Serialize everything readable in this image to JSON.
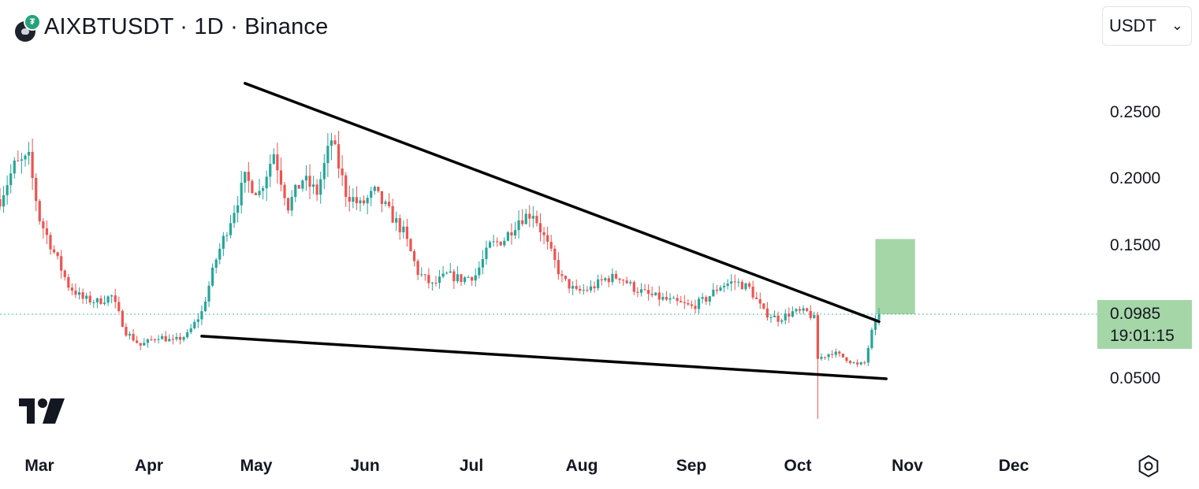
{
  "header": {
    "title": "AIXBTUSDT · 1D · Binance",
    "currency": "USDT"
  },
  "price_axis": {
    "labels": [
      "0.2500",
      "0.2000",
      "0.1500",
      "0.0500"
    ],
    "last_price": "0.0985",
    "countdown": "19:01:15"
  },
  "time_axis": {
    "labels": [
      "Mar",
      "Apr",
      "May",
      "Jun",
      "Jul",
      "Aug",
      "Sep",
      "Oct",
      "Nov",
      "Dec"
    ]
  },
  "colors": {
    "up": "#26a69a",
    "down": "#ef5350",
    "trendline": "#000000",
    "target_box": "#a5d6a7",
    "last_price_line": "#26a69a"
  },
  "icons": [
    "tradingview-logo-icon",
    "settings-icon",
    "chevron-down-icon",
    "coin-icon"
  ],
  "chart_data": {
    "type": "candlestick",
    "symbol": "AIXBTUSDT",
    "interval": "1D",
    "exchange": "Binance",
    "ylim": [
      0.012,
      0.285
    ],
    "y_ticks": [
      0.05,
      0.15,
      0.2,
      0.25
    ],
    "last_price": 0.0985,
    "close_path": [
      [
        "2025-02-25",
        0.185
      ],
      [
        "2025-03-01",
        0.21
      ],
      [
        "2025-03-05",
        0.215
      ],
      [
        "2025-03-08",
        0.17
      ],
      [
        "2025-03-12",
        0.145
      ],
      [
        "2025-03-16",
        0.12
      ],
      [
        "2025-03-20",
        0.11
      ],
      [
        "2025-03-24",
        0.108
      ],
      [
        "2025-03-28",
        0.112
      ],
      [
        "2025-04-01",
        0.085
      ],
      [
        "2025-04-05",
        0.075
      ],
      [
        "2025-04-10",
        0.082
      ],
      [
        "2025-04-14",
        0.078
      ],
      [
        "2025-04-18",
        0.083
      ],
      [
        "2025-04-22",
        0.1
      ],
      [
        "2025-04-26",
        0.14
      ],
      [
        "2025-04-30",
        0.17
      ],
      [
        "2025-05-04",
        0.2
      ],
      [
        "2025-05-08",
        0.19
      ],
      [
        "2025-05-12",
        0.22
      ],
      [
        "2025-05-16",
        0.18
      ],
      [
        "2025-05-20",
        0.2
      ],
      [
        "2025-05-24",
        0.19
      ],
      [
        "2025-05-28",
        0.23
      ],
      [
        "2025-06-01",
        0.19
      ],
      [
        "2025-06-05",
        0.18
      ],
      [
        "2025-06-09",
        0.19
      ],
      [
        "2025-06-13",
        0.175
      ],
      [
        "2025-06-17",
        0.16
      ],
      [
        "2025-06-21",
        0.13
      ],
      [
        "2025-06-25",
        0.12
      ],
      [
        "2025-06-29",
        0.128
      ],
      [
        "2025-07-03",
        0.125
      ],
      [
        "2025-07-07",
        0.128
      ],
      [
        "2025-07-11",
        0.15
      ],
      [
        "2025-07-15",
        0.155
      ],
      [
        "2025-07-19",
        0.17
      ],
      [
        "2025-07-23",
        0.175
      ],
      [
        "2025-07-27",
        0.15
      ],
      [
        "2025-07-31",
        0.125
      ],
      [
        "2025-08-04",
        0.115
      ],
      [
        "2025-08-08",
        0.118
      ],
      [
        "2025-08-12",
        0.125
      ],
      [
        "2025-08-16",
        0.127
      ],
      [
        "2025-08-20",
        0.118
      ],
      [
        "2025-08-24",
        0.113
      ],
      [
        "2025-08-28",
        0.11
      ],
      [
        "2025-09-01",
        0.107
      ],
      [
        "2025-09-05",
        0.104
      ],
      [
        "2025-09-09",
        0.11
      ],
      [
        "2025-09-13",
        0.12
      ],
      [
        "2025-09-17",
        0.123
      ],
      [
        "2025-09-21",
        0.118
      ],
      [
        "2025-09-25",
        0.1
      ],
      [
        "2025-09-29",
        0.095
      ],
      [
        "2025-10-03",
        0.1
      ],
      [
        "2025-10-07",
        0.1
      ],
      [
        "2025-10-09",
        0.095
      ],
      [
        "2025-10-10",
        0.065
      ],
      [
        "2025-10-14",
        0.07
      ],
      [
        "2025-10-18",
        0.065
      ],
      [
        "2025-10-21",
        0.06
      ],
      [
        "2025-10-23",
        0.062
      ],
      [
        "2025-10-25",
        0.085
      ],
      [
        "2025-10-27",
        0.0985
      ]
    ],
    "flash_wick_low": {
      "date": "2025-10-10",
      "low": 0.02
    },
    "trendlines": [
      {
        "name": "upper",
        "from": [
          "2025-05-04",
          0.272
        ],
        "to": [
          "2025-10-27",
          0.093
        ]
      },
      {
        "name": "lower",
        "from": [
          "2025-04-22",
          0.082
        ],
        "to": [
          "2025-10-29",
          0.05
        ]
      }
    ],
    "target_box": {
      "from": "2025-10-26",
      "to": "2025-11-06",
      "low": 0.0985,
      "high": 0.155
    }
  }
}
